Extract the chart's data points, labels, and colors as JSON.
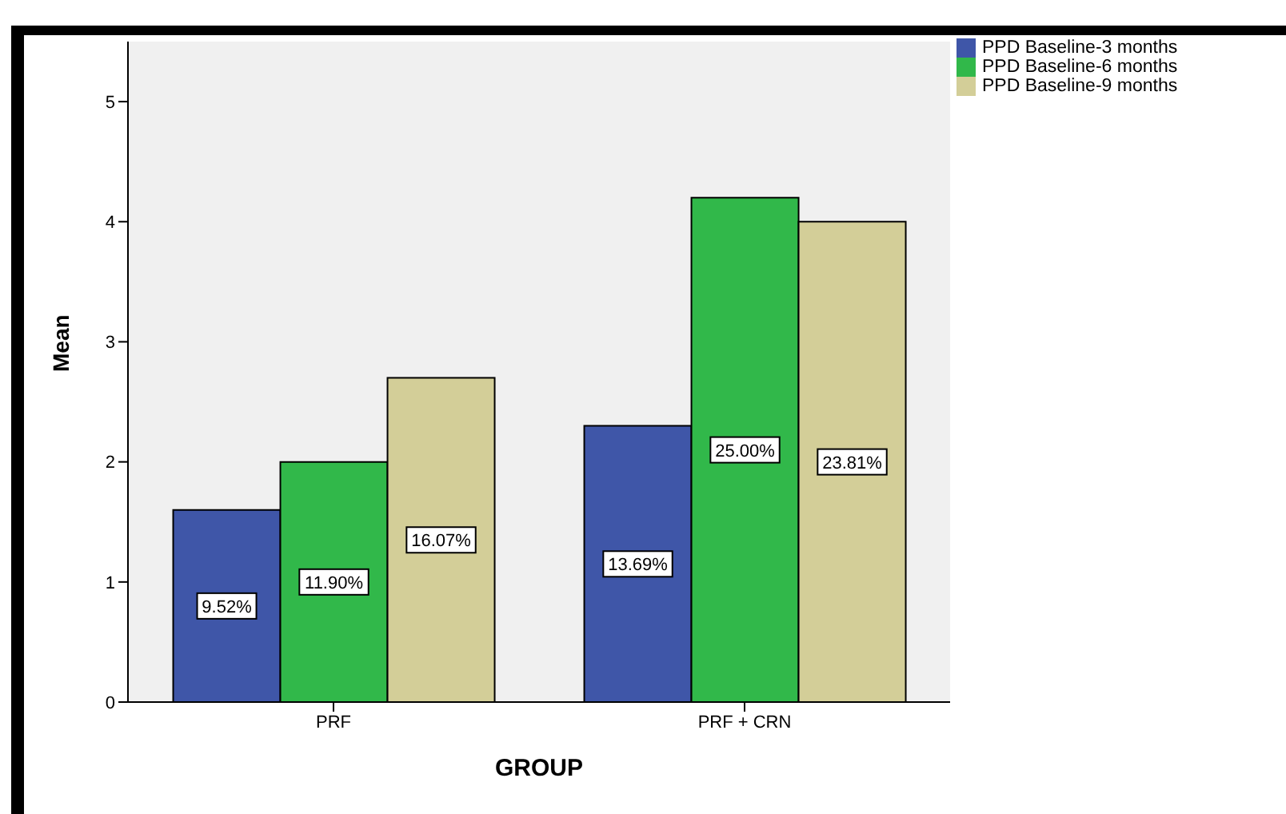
{
  "chart_data": {
    "type": "bar",
    "xlabel": "GROUP",
    "ylabel": "Mean",
    "categories": [
      "PRF",
      "PRF + CRN"
    ],
    "series": [
      {
        "name": "PPD Baseline-3 months",
        "color": "#3f56a8",
        "values": [
          1.6,
          2.3
        ]
      },
      {
        "name": "PPD Baseline-6 months",
        "color": "#31b84a",
        "values": [
          2.0,
          4.2
        ]
      },
      {
        "name": "PPD Baseline-9 months",
        "color": "#d3ce98",
        "values": [
          2.7,
          4.0
        ]
      }
    ],
    "annotations": [
      "9.52%",
      "13.69%",
      "11.90%",
      "25.00%",
      "16.07%",
      "23.81%"
    ],
    "ylim": [
      0,
      5.5
    ],
    "yticks": [
      0,
      1,
      2,
      3,
      4,
      5
    ],
    "grid": false,
    "legend": "top right"
  }
}
